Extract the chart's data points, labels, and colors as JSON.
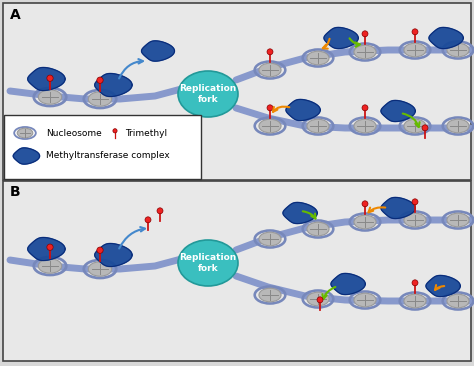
{
  "background_color": "#d8d8d8",
  "panel_bg": "#e8e8e8",
  "border_color": "#444444",
  "title_A": "A",
  "title_B": "B",
  "replication_fork_color": "#3abfbf",
  "replication_fork_text": "Replication\nfork",
  "dna_color": "#8899cc",
  "nucleosome_color": "#b8b8b8",
  "nucleosome_line_color": "#888888",
  "nucleosome_wrap_color": "#7788bb",
  "methyltransferase_color": "#1a4a99",
  "methyltransferase_edge": "#0a2a77",
  "trimethyl_stem_color": "#cc1111",
  "trimethyl_ball_color": "#ee2222",
  "arrow_blue_color": "#4488cc",
  "arrow_orange_color": "#ee8800",
  "arrow_green_color": "#66bb00",
  "font_size_label": 10,
  "font_size_legend": 7,
  "font_size_fork": 6.5
}
